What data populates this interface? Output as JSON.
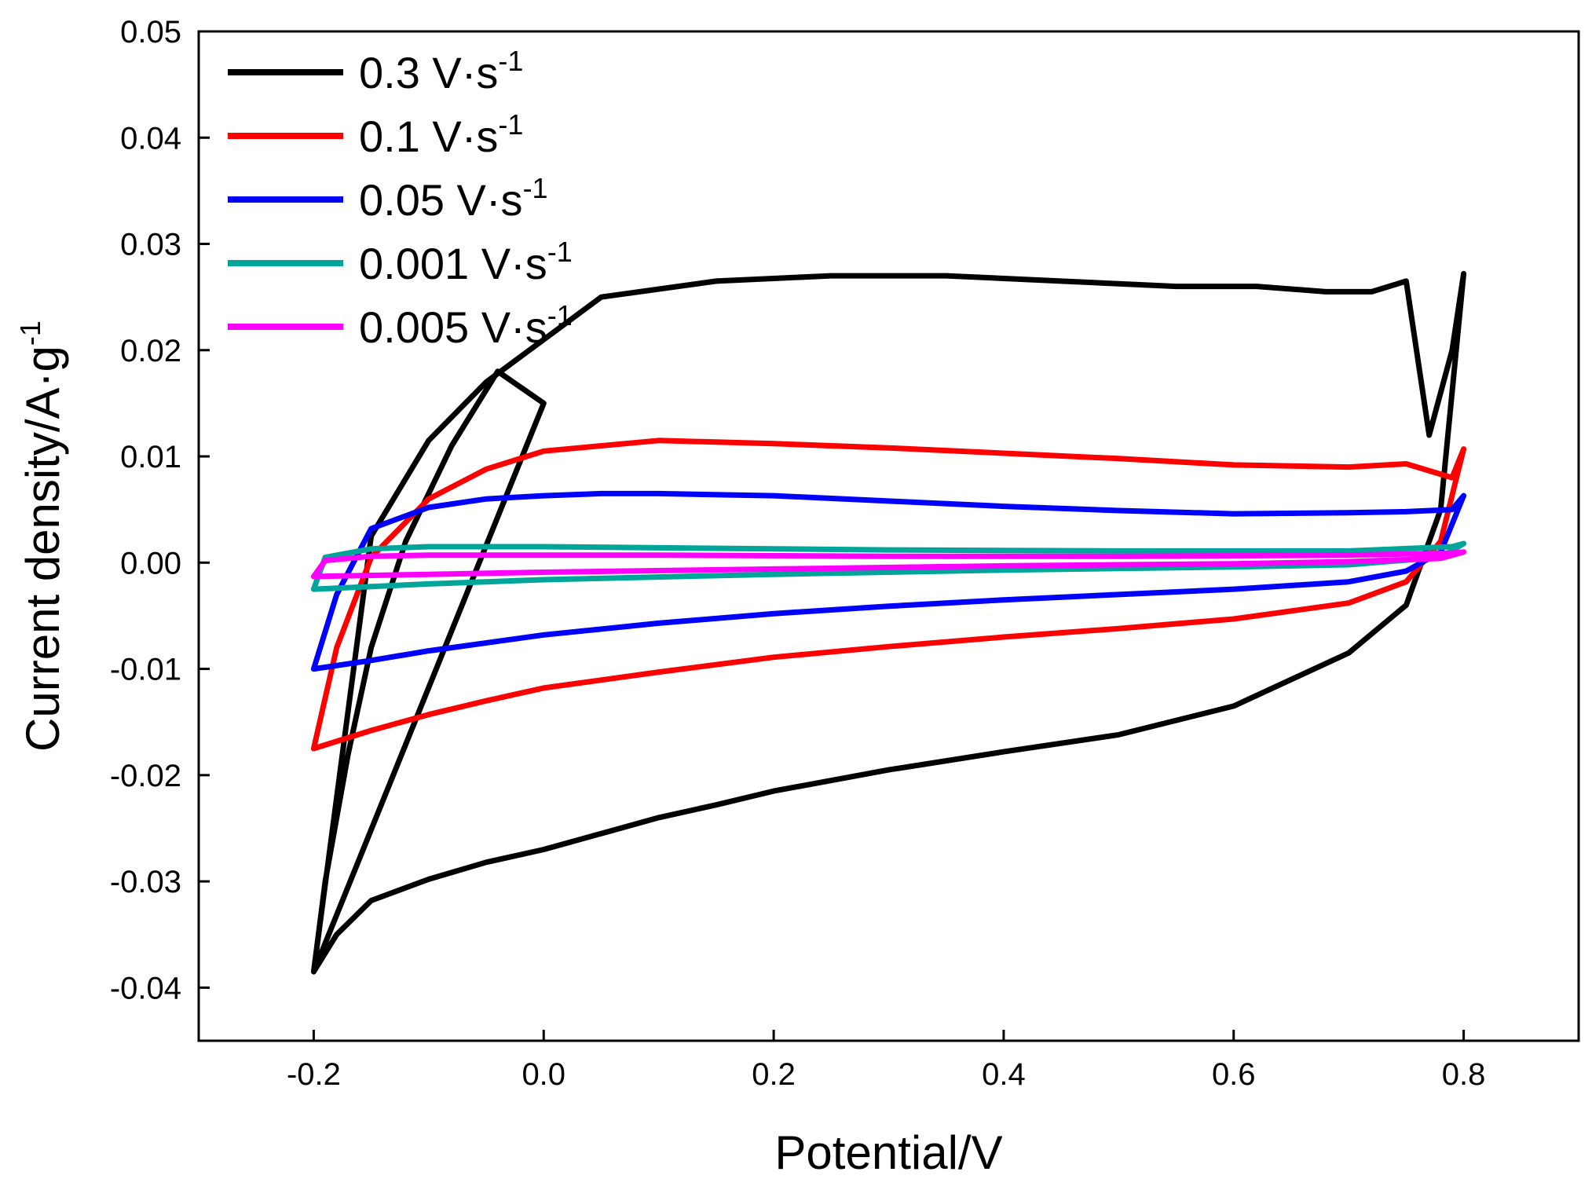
{
  "chart_data": {
    "type": "line",
    "title": "",
    "xlabel": "Potential/V",
    "ylabel": "Current density/A·g",
    "ylabel_sup": "-1",
    "xlim": [
      -0.3,
      0.9
    ],
    "ylim": [
      -0.045,
      0.05
    ],
    "xticks": [
      -0.2,
      0.0,
      0.2,
      0.4,
      0.6,
      0.8
    ],
    "xtick_labels": [
      "-0.2",
      "0.0",
      "0.2",
      "0.4",
      "0.6",
      "0.8"
    ],
    "yticks": [
      -0.04,
      -0.03,
      -0.02,
      -0.01,
      0.0,
      0.01,
      0.02,
      0.03,
      0.04,
      0.05
    ],
    "ytick_labels": [
      "-0.04",
      "-0.03",
      "-0.02",
      "-0.01",
      "0.00",
      "0.01",
      "0.02",
      "0.03",
      "0.04",
      "0.05"
    ],
    "grid": false,
    "legend_position": "top-left",
    "series": [
      {
        "name": "0.3 V·s",
        "sup": "-1",
        "color": "#000000",
        "x": [
          -0.2,
          -0.18,
          -0.15,
          -0.1,
          -0.05,
          0.0,
          0.05,
          0.1,
          0.15,
          0.2,
          0.3,
          0.4,
          0.5,
          0.6,
          0.7,
          0.75,
          0.78,
          0.8,
          0.79,
          0.77,
          0.75,
          0.72,
          0.68,
          0.62,
          0.55,
          0.45,
          0.35,
          0.25,
          0.15,
          0.05,
          0.0,
          -0.05,
          -0.1,
          -0.15,
          -0.2,
          -0.19,
          -0.17,
          -0.15,
          -0.12,
          -0.08,
          -0.04,
          0.0,
          -0.2
        ],
        "y": [
          -0.0385,
          -0.035,
          -0.0318,
          -0.0298,
          -0.0282,
          -0.027,
          -0.0255,
          -0.024,
          -0.0228,
          -0.0215,
          -0.0195,
          -0.0178,
          -0.0162,
          -0.0135,
          -0.0085,
          -0.004,
          0.005,
          0.0272,
          0.02,
          0.012,
          0.0265,
          0.0255,
          0.0255,
          0.026,
          0.026,
          0.0265,
          0.027,
          0.027,
          0.0265,
          0.025,
          0.021,
          0.017,
          0.0115,
          0.0025,
          -0.0385,
          -0.03,
          -0.018,
          -0.008,
          0.002,
          0.011,
          0.018,
          0.015,
          -0.0385
        ]
      },
      {
        "name": "0.1 V·s",
        "sup": "-1",
        "color": "#ff0000",
        "x": [
          -0.2,
          -0.15,
          -0.1,
          -0.05,
          0.0,
          0.1,
          0.2,
          0.3,
          0.4,
          0.5,
          0.6,
          0.7,
          0.75,
          0.78,
          0.8,
          0.79,
          0.75,
          0.7,
          0.6,
          0.5,
          0.4,
          0.3,
          0.2,
          0.1,
          0.0,
          -0.05,
          -0.1,
          -0.15,
          -0.18,
          -0.2
        ],
        "y": [
          -0.0175,
          -0.0158,
          -0.0143,
          -0.013,
          -0.0118,
          -0.0103,
          -0.0089,
          -0.0079,
          -0.007,
          -0.0062,
          -0.0053,
          -0.0038,
          -0.0018,
          0.002,
          0.0107,
          0.008,
          0.0093,
          0.009,
          0.0092,
          0.0098,
          0.0103,
          0.0108,
          0.0112,
          0.0115,
          0.0105,
          0.0088,
          0.006,
          0.0005,
          -0.008,
          -0.0175
        ]
      },
      {
        "name": "0.05 V·s",
        "sup": "-1",
        "color": "#0000ff",
        "x": [
          -0.2,
          -0.15,
          -0.1,
          0.0,
          0.1,
          0.2,
          0.3,
          0.4,
          0.5,
          0.6,
          0.7,
          0.75,
          0.78,
          0.8,
          0.79,
          0.75,
          0.7,
          0.6,
          0.5,
          0.4,
          0.3,
          0.2,
          0.1,
          0.05,
          0.0,
          -0.05,
          -0.1,
          -0.15,
          -0.18,
          -0.2
        ],
        "y": [
          -0.01,
          -0.0092,
          -0.0083,
          -0.0068,
          -0.0057,
          -0.0048,
          -0.0041,
          -0.0035,
          -0.003,
          -0.0025,
          -0.0018,
          -0.0008,
          0.001,
          0.0063,
          0.005,
          0.0048,
          0.0047,
          0.0046,
          0.0049,
          0.0053,
          0.0058,
          0.0063,
          0.0065,
          0.0065,
          0.0063,
          0.006,
          0.0052,
          0.0032,
          -0.003,
          -0.01
        ]
      },
      {
        "name": "0.001 V·s",
        "sup": "-1",
        "color": "#00a59a",
        "x": [
          -0.2,
          -0.1,
          0.0,
          0.2,
          0.4,
          0.6,
          0.7,
          0.78,
          0.8,
          0.79,
          0.7,
          0.5,
          0.3,
          0.1,
          0.0,
          -0.1,
          -0.15,
          -0.19,
          -0.2
        ],
        "y": [
          -0.0025,
          -0.002,
          -0.0016,
          -0.0011,
          -0.0007,
          -0.0004,
          -0.0002,
          0.0005,
          0.0018,
          0.0015,
          0.0011,
          0.0011,
          0.0012,
          0.0014,
          0.0015,
          0.0015,
          0.0013,
          0.0005,
          -0.0025
        ]
      },
      {
        "name": "0.005  V·s",
        "sup": "-1",
        "color": "#ff00ff",
        "x": [
          -0.2,
          -0.1,
          0.0,
          0.2,
          0.4,
          0.6,
          0.7,
          0.78,
          0.8,
          0.79,
          0.7,
          0.5,
          0.3,
          0.1,
          0.0,
          -0.1,
          -0.15,
          -0.19,
          -0.2
        ],
        "y": [
          -0.0013,
          -0.0011,
          -0.0009,
          -0.0006,
          -0.0003,
          -0.0001,
          0.0001,
          0.0004,
          0.001,
          0.0009,
          0.0007,
          0.0006,
          0.0006,
          0.0007,
          0.0007,
          0.0007,
          0.0006,
          0.0002,
          -0.0013
        ]
      }
    ]
  }
}
